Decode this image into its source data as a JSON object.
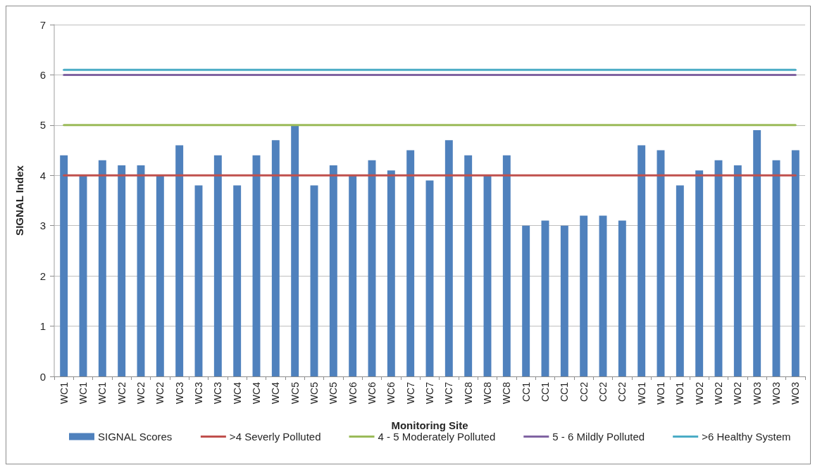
{
  "chart_data": {
    "type": "bar",
    "xlabel": "Monitoring Site",
    "ylabel": "SIGNAL Index",
    "categories": [
      "WC1",
      "WC1",
      "WC1",
      "WC2",
      "WC2",
      "WC2",
      "WC3",
      "WC3",
      "WC3",
      "WC4",
      "WC4",
      "WC4",
      "WC5",
      "WC5",
      "WC5",
      "WC6",
      "WC6",
      "WC6",
      "WC7",
      "WC7",
      "WC7",
      "WC8",
      "WC8",
      "WC8",
      "CC1",
      "CC1",
      "CC1",
      "CC2",
      "CC2",
      "CC2",
      "WO1",
      "WO1",
      "WO1",
      "WO2",
      "WO2",
      "WO2",
      "WO3",
      "WO3",
      "WO3"
    ],
    "series": [
      {
        "name": "SIGNAL Scores",
        "color": "#4f81bd",
        "values": [
          4.4,
          4.0,
          4.3,
          4.2,
          4.2,
          4.0,
          4.6,
          3.8,
          4.4,
          3.8,
          4.4,
          4.7,
          5.0,
          3.8,
          4.2,
          4.0,
          4.3,
          4.1,
          4.5,
          3.9,
          4.7,
          4.4,
          4.0,
          4.4,
          3.0,
          3.1,
          3.0,
          3.2,
          3.2,
          3.1,
          4.6,
          4.5,
          3.8,
          4.1,
          4.3,
          4.2,
          4.9,
          4.3,
          4.5
        ]
      },
      {
        "name": ">4 Severly Polluted",
        "type": "line",
        "color": "#c0504d",
        "values": [
          4,
          4,
          4,
          4,
          4,
          4,
          4,
          4,
          4,
          4,
          4,
          4,
          4,
          4,
          4,
          4,
          4,
          4,
          4,
          4,
          4,
          4,
          4,
          4,
          4,
          4,
          4,
          4,
          4,
          4,
          4,
          4,
          4,
          4,
          4,
          4,
          4,
          4,
          4
        ]
      },
      {
        "name": "4 - 5 Moderately Polluted",
        "type": "line",
        "color": "#9bbb59",
        "values": [
          5,
          5,
          5,
          5,
          5,
          5,
          5,
          5,
          5,
          5,
          5,
          5,
          5,
          5,
          5,
          5,
          5,
          5,
          5,
          5,
          5,
          5,
          5,
          5,
          5,
          5,
          5,
          5,
          5,
          5,
          5,
          5,
          5,
          5,
          5,
          5,
          5,
          5,
          5
        ]
      },
      {
        "name": "5 - 6 Mildly Polluted",
        "type": "line",
        "color": "#8064a2",
        "values": [
          6,
          6,
          6,
          6,
          6,
          6,
          6,
          6,
          6,
          6,
          6,
          6,
          6,
          6,
          6,
          6,
          6,
          6,
          6,
          6,
          6,
          6,
          6,
          6,
          6,
          6,
          6,
          6,
          6,
          6,
          6,
          6,
          6,
          6,
          6,
          6,
          6,
          6,
          6
        ]
      },
      {
        "name": ">6 Healthy System",
        "type": "line",
        "color": "#4bacc6",
        "values": [
          6.1,
          6.1,
          6.1,
          6.1,
          6.1,
          6.1,
          6.1,
          6.1,
          6.1,
          6.1,
          6.1,
          6.1,
          6.1,
          6.1,
          6.1,
          6.1,
          6.1,
          6.1,
          6.1,
          6.1,
          6.1,
          6.1,
          6.1,
          6.1,
          6.1,
          6.1,
          6.1,
          6.1,
          6.1,
          6.1,
          6.1,
          6.1,
          6.1,
          6.1,
          6.1,
          6.1,
          6.1,
          6.1,
          6.1
        ]
      }
    ],
    "ylim": [
      0,
      7
    ],
    "yticks": [
      0,
      1,
      2,
      3,
      4,
      5,
      6,
      7
    ],
    "grid": "y",
    "legend": "bottom",
    "marker": "none"
  }
}
